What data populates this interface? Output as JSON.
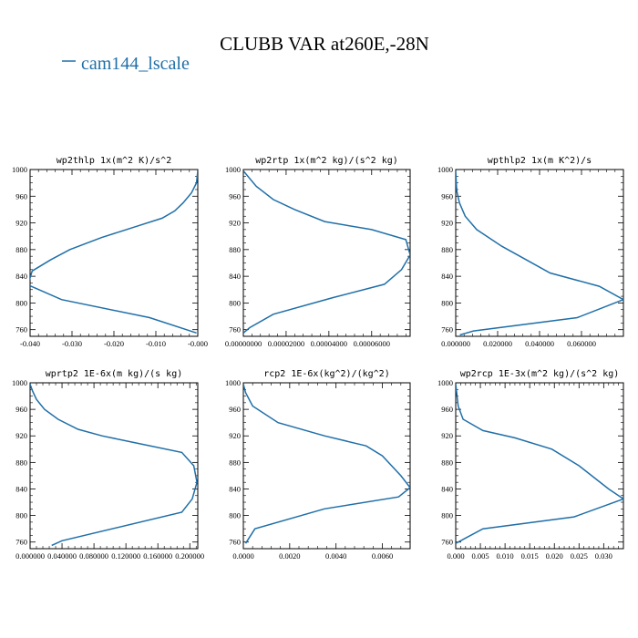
{
  "figure": {
    "title": "CLUBB VAR at260E,-28N",
    "line_color": "#1f6fa8"
  },
  "legend": {
    "entries": [
      {
        "label": "cam144_lscale",
        "color": "#1f6fa8"
      }
    ],
    "placement": "top-left"
  },
  "chart_data": [
    {
      "type": "line",
      "title": "wp2thlp  1x(m^2 K)/s^2",
      "xlim": [
        -0.04,
        0.0
      ],
      "ylim": [
        1000,
        750
      ],
      "x_ticks": [
        -0.04,
        -0.03,
        -0.02,
        -0.01,
        0.0
      ],
      "x_tick_labels": [
        "-0.040",
        "-0.030",
        "-0.020",
        "-0.010",
        "-0.000"
      ],
      "y_ticks": [
        760,
        800,
        840,
        880,
        920,
        960,
        1000
      ],
      "y_tick_labels": [
        "760",
        "800",
        "840",
        "880",
        "920",
        "960",
        "1000"
      ],
      "series": [
        {
          "x": [
            -0.0003,
            -0.0115,
            -0.0325,
            -0.0405,
            -0.0395,
            -0.035,
            -0.0305,
            -0.023,
            -0.0145,
            -0.0085,
            -0.0055,
            -0.0035,
            -0.0015,
            -0.0003,
            0.0
          ],
          "y": [
            755,
            778,
            805,
            827,
            848,
            865,
            880,
            898,
            915,
            927,
            938,
            950,
            965,
            980,
            998
          ]
        }
      ]
    },
    {
      "type": "line",
      "title": "wp2rtp  1x(m^2 kg)/(s^2 kg)",
      "xlim": [
        0.0,
        7.8e-05
      ],
      "ylim": [
        1000,
        750
      ],
      "x_ticks": [
        0.0,
        2e-05,
        4e-05,
        6e-05
      ],
      "x_tick_labels": [
        "0.00000000",
        "0.00002000",
        "0.00004000",
        "0.00006000"
      ],
      "y_ticks": [
        760,
        800,
        840,
        880,
        920,
        960,
        1000
      ],
      "y_tick_labels": [
        "760",
        "800",
        "840",
        "880",
        "920",
        "960",
        "1000"
      ],
      "series": [
        {
          "x": [
            0.0,
            3e-06,
            1.4e-05,
            4.2e-05,
            6.6e-05,
            7.4e-05,
            7.8e-05,
            7.6e-05,
            6e-05,
            3.8e-05,
            2.4e-05,
            1.4e-05,
            6e-06,
            0.0
          ],
          "y": [
            755,
            763,
            783,
            808,
            828,
            850,
            872,
            895,
            910,
            922,
            940,
            955,
            975,
            998
          ]
        }
      ]
    },
    {
      "type": "line",
      "title": "wpthlp2  1x(m K^2)/s",
      "xlim": [
        0.0,
        0.08
      ],
      "ylim": [
        1000,
        750
      ],
      "x_ticks": [
        0.0,
        0.02,
        0.04,
        0.06
      ],
      "x_tick_labels": [
        "0.000000",
        "0.020000",
        "0.040000",
        "0.060000"
      ],
      "y_ticks": [
        760,
        800,
        840,
        880,
        920,
        960,
        1000
      ],
      "y_tick_labels": [
        "760",
        "800",
        "840",
        "880",
        "920",
        "960",
        "1000"
      ],
      "series": [
        {
          "x": [
            0.002,
            0.0085,
            0.058,
            0.08,
            0.0685,
            0.045,
            0.0335,
            0.022,
            0.01,
            0.0045,
            0.0018,
            0.0005,
            0.0
          ],
          "y": [
            752,
            758,
            778,
            805,
            825,
            845,
            865,
            885,
            910,
            930,
            950,
            968,
            998
          ]
        }
      ]
    },
    {
      "type": "line",
      "title": "wprtp2  1E-6x(m kg)/(s kg)",
      "xlim": [
        0.0,
        0.21
      ],
      "ylim": [
        1000,
        750
      ],
      "x_ticks": [
        0.0,
        0.04,
        0.08,
        0.12,
        0.16,
        0.2
      ],
      "x_tick_labels": [
        "0.000000",
        "0.040000",
        "0.080000",
        "0.120000",
        "0.160000",
        "0.200000"
      ],
      "y_ticks": [
        760,
        800,
        840,
        880,
        920,
        960,
        1000
      ],
      "y_tick_labels": [
        "760",
        "800",
        "840",
        "880",
        "920",
        "960",
        "1000"
      ],
      "series": [
        {
          "x": [
            0.027,
            0.04,
            0.19,
            0.203,
            0.209,
            0.205,
            0.19,
            0.13,
            0.09,
            0.06,
            0.035,
            0.018,
            0.008,
            0.003,
            0.0
          ],
          "y": [
            755,
            762,
            805,
            825,
            850,
            875,
            895,
            910,
            920,
            930,
            945,
            960,
            975,
            988,
            998
          ]
        }
      ]
    },
    {
      "type": "line",
      "title": "rcp2  1E-6x(kg^2)/(kg^2)",
      "xlim": [
        0.0,
        0.0072
      ],
      "ylim": [
        1000,
        750
      ],
      "x_ticks": [
        0.0,
        0.002,
        0.004,
        0.006
      ],
      "x_tick_labels": [
        "0.0000",
        "0.0020",
        "0.0040",
        "0.0060"
      ],
      "y_ticks": [
        760,
        800,
        840,
        880,
        920,
        960,
        1000
      ],
      "y_tick_labels": [
        "760",
        "800",
        "840",
        "880",
        "920",
        "960",
        "1000"
      ],
      "series": [
        {
          "x": [
            0.0001,
            0.0005,
            0.0035,
            0.0067,
            0.0072,
            0.0068,
            0.006,
            0.0053,
            0.0035,
            0.0015,
            0.0004,
            0.0001,
            0.0
          ],
          "y": [
            758,
            780,
            810,
            828,
            842,
            860,
            890,
            905,
            920,
            940,
            965,
            985,
            998
          ]
        }
      ]
    },
    {
      "type": "line",
      "title": "wp2rcp  1E-3x(m^2 kg)/(s^2 kg)",
      "xlim": [
        0.0,
        0.034
      ],
      "ylim": [
        1000,
        750
      ],
      "x_ticks": [
        0.0,
        0.005,
        0.01,
        0.015,
        0.02,
        0.025,
        0.03
      ],
      "x_tick_labels": [
        "0.000",
        "0.005",
        "0.010",
        "0.015",
        "0.020",
        "0.025",
        "0.030"
      ],
      "y_ticks": [
        760,
        800,
        840,
        880,
        920,
        960,
        1000
      ],
      "y_tick_labels": [
        "760",
        "800",
        "840",
        "880",
        "920",
        "960",
        "1000"
      ],
      "series": [
        {
          "x": [
            0.0,
            0.0055,
            0.024,
            0.034,
            0.031,
            0.025,
            0.0195,
            0.012,
            0.0055,
            0.0015,
            0.0005,
            0.0
          ],
          "y": [
            758,
            780,
            798,
            825,
            840,
            875,
            900,
            917,
            928,
            945,
            965,
            998
          ]
        }
      ]
    }
  ]
}
